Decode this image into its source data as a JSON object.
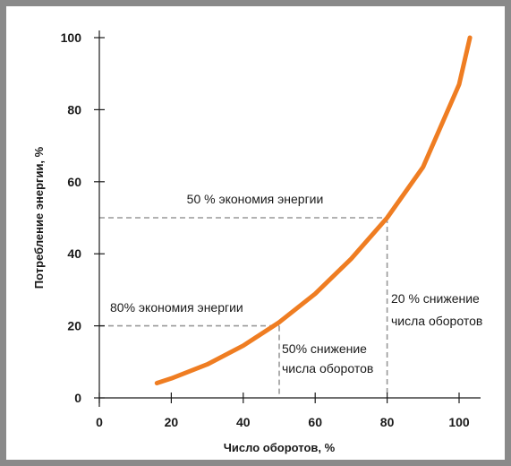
{
  "chart_data": {
    "type": "line",
    "title": "",
    "xlabel": "Число оборотов, %",
    "ylabel": "Потребление энергии, %",
    "xlim": [
      0,
      100
    ],
    "ylim": [
      0,
      100
    ],
    "x_ticks": [
      0,
      20,
      40,
      60,
      80,
      100
    ],
    "y_ticks": [
      0,
      20,
      40,
      60,
      80,
      100
    ],
    "x_tick_labels": [
      "0",
      "20",
      "40",
      "60",
      "80",
      "100"
    ],
    "y_tick_labels": [
      "0",
      "20",
      "40",
      "60",
      "80",
      "100"
    ],
    "grid": false,
    "legend": "none",
    "series": [
      {
        "color": "#ef7d22",
        "x": [
          16,
          20,
          30,
          40,
          50,
          60,
          70,
          80,
          90,
          100,
          103
        ],
        "y": [
          4.1,
          5.4,
          9.3,
          14.5,
          21,
          28.9,
          38.6,
          50,
          64.1,
          87,
          100
        ]
      }
    ],
    "reference_lines": [
      {
        "x": 80,
        "y": 50,
        "color": "#999999"
      },
      {
        "x": 50,
        "y": 20,
        "color": "#999999"
      }
    ],
    "annotations": [
      {
        "id": "ann-50-savings",
        "text": "50 % экономия энергии"
      },
      {
        "id": "ann-80-savings",
        "text": "80% экономия энергии"
      },
      {
        "id": "ann-20-reduction-1",
        "text": "20 % снижение"
      },
      {
        "id": "ann-20-reduction-2",
        "text": "числа оборотов"
      },
      {
        "id": "ann-50-reduction-1",
        "text": "50% снижение"
      },
      {
        "id": "ann-50-reduction-2",
        "text": "числа оборотов"
      }
    ]
  }
}
